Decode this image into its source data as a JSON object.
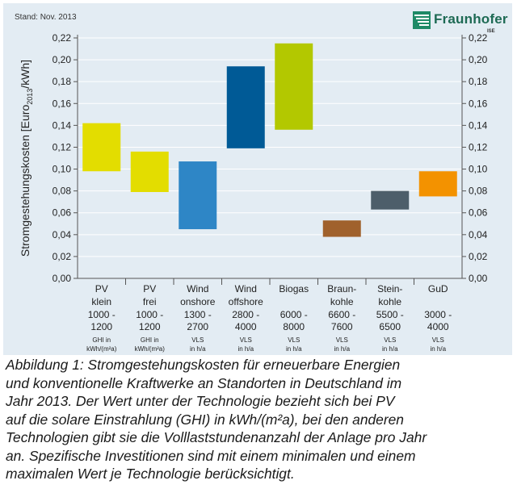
{
  "stand": "Stand: Nov. 2013",
  "logo": {
    "name": "Fraunhofer",
    "sub": "ISE"
  },
  "chart_data": {
    "type": "bar",
    "chart_subtype": "floating-range-bar",
    "ylabel": "Stromgestehungskosten [Euro2013/kWh]",
    "ylabel_parts": {
      "main": "Stromgestehungskosten [Euro",
      "sub": "2013",
      "tail": "/kWh]"
    },
    "ylim": [
      0,
      0.22
    ],
    "yticks": [
      "0,00",
      "0,02",
      "0,04",
      "0,06",
      "0,08",
      "0,10",
      "0,12",
      "0,14",
      "0,16",
      "0,18",
      "0,20",
      "0,22"
    ],
    "ytick_values": [
      0,
      0.02,
      0.04,
      0.06,
      0.08,
      0.1,
      0.12,
      0.14,
      0.16,
      0.18,
      0.2,
      0.22
    ],
    "grid": "horizontal",
    "categories": [
      {
        "label": [
          "PV",
          "klein",
          "1000 -",
          "1200"
        ],
        "unit": [
          "GHI in",
          "kWh/(m²a)"
        ],
        "min": 0.098,
        "max": 0.142,
        "color": "#e3dd00"
      },
      {
        "label": [
          "PV",
          "frei",
          "1000 -",
          "1200"
        ],
        "unit": [
          "GHI in",
          "kWh/(m²a)"
        ],
        "min": 0.079,
        "max": 0.116,
        "color": "#e3dd00"
      },
      {
        "label": [
          "Wind",
          "onshore",
          "1300 -",
          "2700"
        ],
        "unit": [
          "VLS",
          "in h/a"
        ],
        "min": 0.045,
        "max": 0.107,
        "color": "#2e86c6"
      },
      {
        "label": [
          "Wind",
          "offshore",
          "2800 -",
          "4000"
        ],
        "unit": [
          "VLS",
          "in h/a"
        ],
        "min": 0.119,
        "max": 0.194,
        "color": "#005a96"
      },
      {
        "label": [
          "Biogas",
          "",
          "6000 -",
          "8000"
        ],
        "unit": [
          "VLS",
          "in h/a"
        ],
        "min": 0.136,
        "max": 0.215,
        "color": "#b3c800"
      },
      {
        "label": [
          "Braun-",
          "kohle",
          "6600 -",
          "7600"
        ],
        "unit": [
          "VLS",
          "in h/a"
        ],
        "min": 0.038,
        "max": 0.053,
        "color": "#a0612c"
      },
      {
        "label": [
          "Stein-",
          "kohle",
          "5500 -",
          "6500"
        ],
        "unit": [
          "VLS",
          "in h/a"
        ],
        "min": 0.063,
        "max": 0.08,
        "color": "#4d5e6a"
      },
      {
        "label": [
          "GuD",
          "",
          "3000 -",
          "4000"
        ],
        "unit": [
          "VLS",
          "in h/a"
        ],
        "min": 0.075,
        "max": 0.098,
        "color": "#f39200"
      }
    ]
  },
  "caption": {
    "lines": [
      "Abbildung 1: Stromgestehungskosten für erneuerbare Energien",
      "und konventionelle Kraftwerke an Standorten in Deutschland im",
      "Jahr 2013. Der Wert unter der Technologie bezieht sich bei PV",
      "auf die solare Einstrahlung (GHI) in kWh/(m²a), bei den anderen",
      "Technologien gibt sie die Volllaststundenanzahl der Anlage pro Jahr",
      "an. Spezifische Investitionen sind mit einem minimalen und einem",
      "maximalen Wert je Technologie berücksichtigt."
    ]
  }
}
